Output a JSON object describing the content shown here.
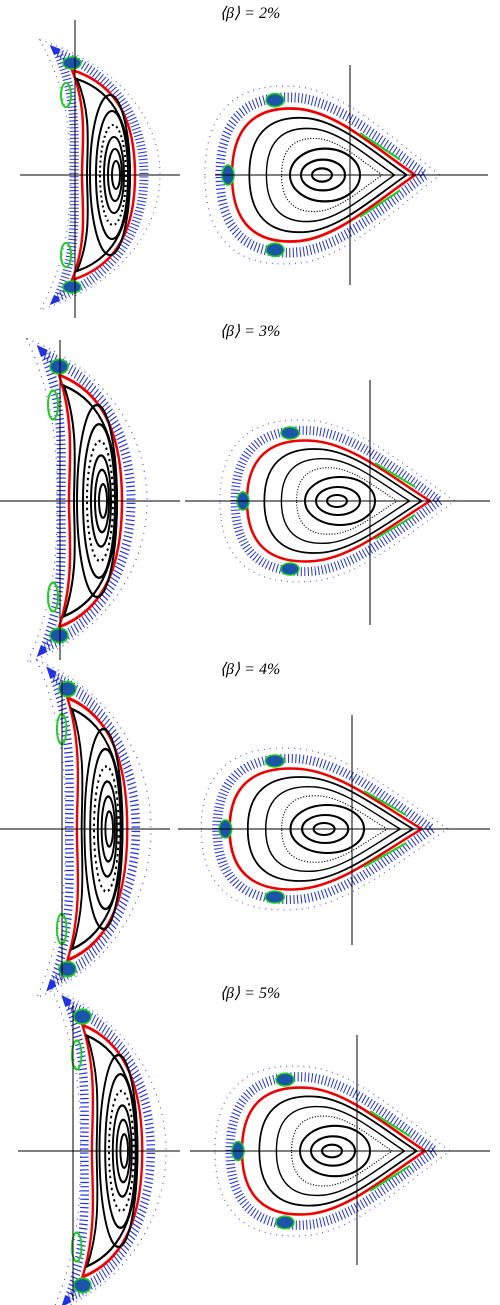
{
  "panels": [
    {
      "title": "⟨β⟩ = 2%"
    },
    {
      "title": "⟨β⟩ = 3%"
    },
    {
      "title": "⟨β⟩ = 4%"
    },
    {
      "title": "⟨β⟩ = 5%"
    }
  ]
}
